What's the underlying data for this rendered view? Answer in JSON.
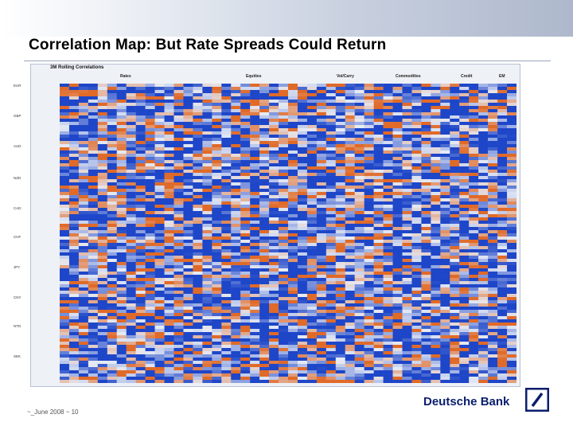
{
  "slide": {
    "title": "Correlation Map: But Rate Spreads Could Return",
    "footer": "~_June 2008 ~ 10",
    "brand_name": "Deutsche Bank"
  },
  "heatmap": {
    "title": "3M Rolling Correlations",
    "column_groups": [
      "Rates",
      "Equities",
      "Vol/Carry",
      "Commodities",
      "Credit",
      "EM"
    ],
    "row_groups": [
      "EUR",
      "GBP",
      "AUD",
      "NZD",
      "CAD",
      "CHF",
      "JPY",
      "CNY",
      "NTD",
      "SEK"
    ],
    "colors": {
      "negative": "#1e46c8",
      "neutral": "#e6ebf5",
      "positive": "#e06a28"
    }
  },
  "colors": {
    "brand": "#0a1e6e",
    "title_band": "#aeb8cc"
  },
  "icons": {
    "logo": "deutsche-bank-slash-logo"
  }
}
